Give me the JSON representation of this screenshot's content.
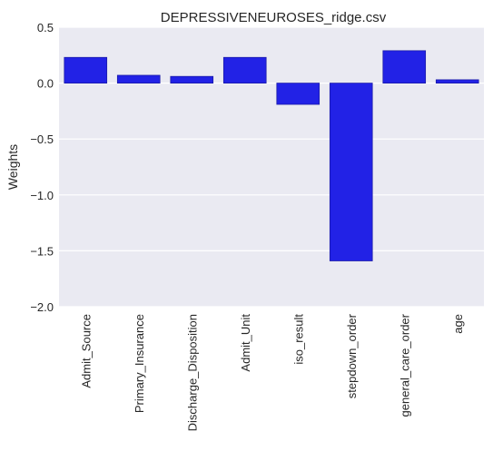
{
  "chart_data": {
    "type": "bar",
    "title": "DEPRESSIVENEUROSES_ridge.csv",
    "xlabel": "",
    "ylabel": "Weights",
    "categories": [
      "Admit_Source",
      "Primary_Insurance",
      "Discharge_Disposition",
      "Admit_Unit",
      "iso_result",
      "stepdown_order",
      "general_care_order",
      "age"
    ],
    "values": [
      0.23,
      0.07,
      0.06,
      0.23,
      -0.19,
      -1.59,
      0.29,
      0.03
    ],
    "ylim": [
      -2.0,
      0.5
    ],
    "yticks": [
      0.5,
      0.0,
      -0.5,
      -1.0,
      -1.5,
      -2.0
    ],
    "ytick_labels": [
      "0.5",
      "0.0",
      "−0.5",
      "−1.0",
      "−1.5",
      "−2.0"
    ],
    "grid": true,
    "colors": {
      "bar": "#2222e6",
      "bar_edge": "#1a1aa8",
      "plot_bg": "#eaeaf2",
      "grid": "#ffffff"
    }
  }
}
